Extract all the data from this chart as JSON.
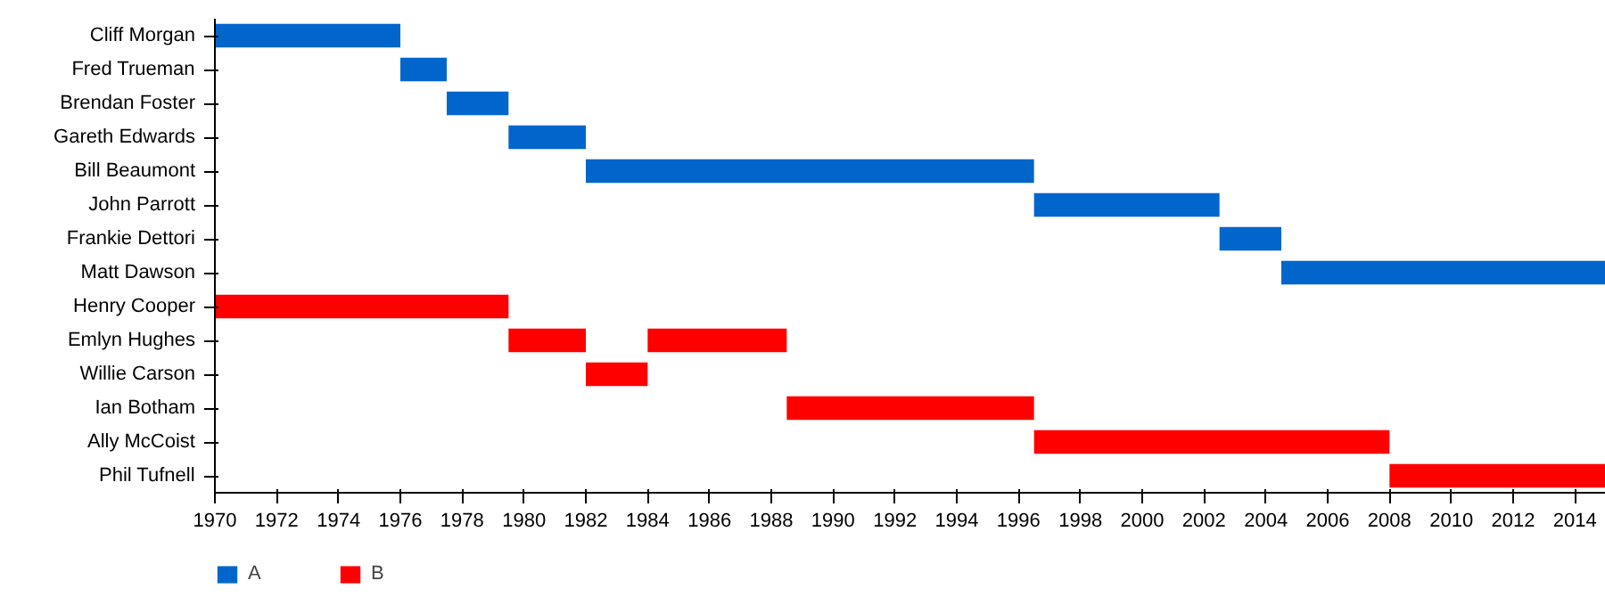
{
  "chart_data": {
    "type": "bar",
    "orientation": "horizontal",
    "categories": [
      "Cliff Morgan",
      "Fred Trueman",
      "Brendan Foster",
      "Gareth Edwards",
      "Bill Beaumont",
      "John Parrott",
      "Frankie Dettori",
      "Matt Dawson",
      "Henry Cooper",
      "Emlyn Hughes",
      "Willie Carson",
      "Ian Botham",
      "Ally McCoist",
      "Phil Tufnell"
    ],
    "series": [
      {
        "name": "A",
        "color": "#0066cc",
        "base": [
          1970,
          1976,
          1977.5,
          1979.5,
          1982,
          1996.5,
          2002.5,
          2004.5,
          null,
          null,
          null,
          null,
          null,
          null
        ],
        "values": [
          6,
          1.5,
          2,
          2.5,
          14.5,
          6,
          2,
          10.5,
          null,
          null,
          null,
          null,
          null,
          null
        ]
      },
      {
        "name": "B",
        "color": "#ff0000",
        "base": [
          null,
          null,
          null,
          null,
          null,
          null,
          null,
          null,
          1970,
          1979.5,
          1982,
          1988.5,
          1996.5,
          2008
        ],
        "values": [
          null,
          null,
          null,
          null,
          null,
          null,
          null,
          null,
          9.5,
          2.5,
          2,
          8,
          11.5,
          7
        ]
      },
      {
        "color": "#ff0000",
        "base": [
          null,
          null,
          null,
          null,
          null,
          null,
          null,
          null,
          null,
          1984,
          null,
          null,
          null,
          null
        ],
        "values": [
          null,
          null,
          null,
          null,
          null,
          null,
          null,
          null,
          null,
          4.5,
          null,
          null,
          null,
          null
        ]
      }
    ],
    "xlim": [
      1970,
      2015
    ],
    "xticks": [
      1970,
      1972,
      1974,
      1976,
      1978,
      1980,
      1982,
      1984,
      1986,
      1988,
      1990,
      1992,
      1994,
      1996,
      1998,
      2000,
      2002,
      2004,
      2006,
      2008,
      2010,
      2012,
      2014
    ],
    "grid": false,
    "legend": "bottom left"
  }
}
